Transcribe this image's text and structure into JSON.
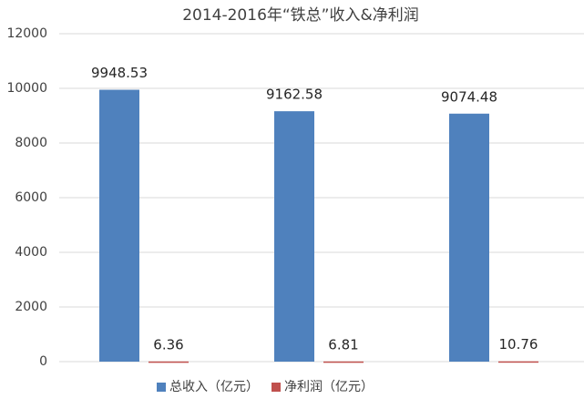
{
  "chart_data": {
    "type": "bar",
    "title": "2014-2016年“铁总”收入&净利润",
    "categories": [
      null,
      null,
      null
    ],
    "series": [
      {
        "name": "总收入（亿元）",
        "color": "#4f81bd",
        "values": [
          9948.53,
          9162.58,
          9074.48
        ]
      },
      {
        "name": "净利润（亿元）",
        "color": "#c0504d",
        "values": [
          6.36,
          6.81,
          10.76
        ]
      }
    ],
    "ylim": [
      0,
      12000
    ],
    "yticks": [
      0,
      2000,
      4000,
      6000,
      8000,
      10000,
      12000
    ],
    "grid": true,
    "legend": "bottom",
    "data_labels": true
  }
}
